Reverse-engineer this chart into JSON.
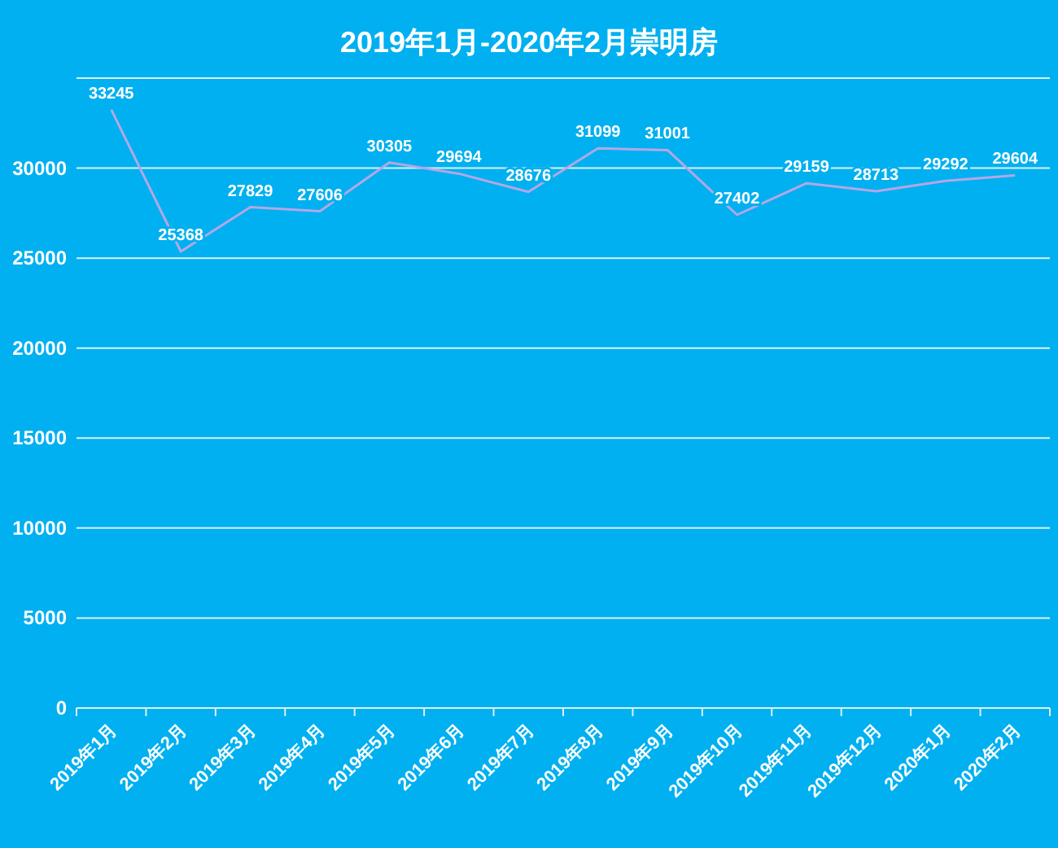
{
  "chart_data": {
    "type": "line",
    "title": "2019年1月-2020年2月崇明房",
    "categories": [
      "2019年1月",
      "2019年2月",
      "2019年3月",
      "2019年4月",
      "2019年5月",
      "2019年6月",
      "2019年7月",
      "2019年8月",
      "2019年9月",
      "2019年10月",
      "2019年11月",
      "2019年12月",
      "2020年1月",
      "2020年2月"
    ],
    "series": [
      {
        "color": "#b4a7e6",
        "values": [
          33245,
          25368,
          27829,
          27606,
          30305,
          29694,
          28676,
          31099,
          31001,
          27402,
          29159,
          28713,
          29292,
          29604
        ]
      }
    ],
    "ylim": [
      0,
      35000
    ],
    "yticks": [
      0,
      5000,
      10000,
      15000,
      20000,
      25000,
      30000,
      {
        "value": 35000,
        "label": null
      }
    ],
    "grid": "y",
    "data_labels": true,
    "marker": "none",
    "line_style": "solid"
  }
}
